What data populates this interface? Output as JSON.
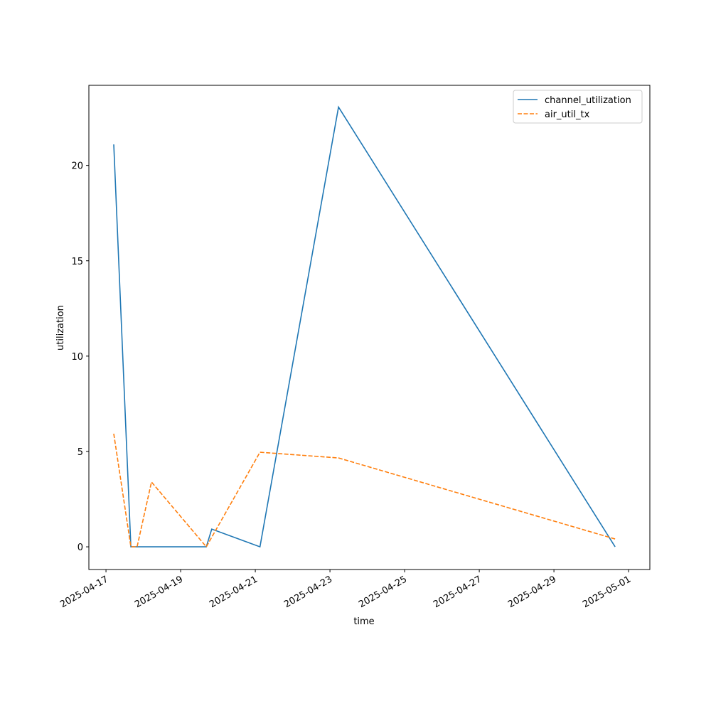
{
  "chart_data": {
    "type": "line",
    "xlabel": "time",
    "ylabel": "utilization",
    "xlim": [
      "2025-04-16T13:00",
      "2025-05-01T13:40"
    ],
    "xticks": [
      "2025-04-17",
      "2025-04-19",
      "2025-04-21",
      "2025-04-23",
      "2025-04-25",
      "2025-04-27",
      "2025-04-29",
      "2025-05-01"
    ],
    "ylim": [
      -1.19,
      24.2
    ],
    "yticks": [
      0,
      5,
      10,
      15,
      20
    ],
    "legend": "upper right",
    "series": [
      {
        "name": "channel_utilization",
        "color": "#1f77b4",
        "dash": "solid",
        "x": [
          "2025-04-17T05:00",
          "2025-04-17T16:00",
          "2025-04-19T16:30",
          "2025-04-19T20:00",
          "2025-04-21T03:00",
          "2025-04-23T05:30",
          "2025-04-30T15:20"
        ],
        "values": [
          21.1,
          0,
          0,
          0.93,
          0,
          23.06,
          0
        ]
      },
      {
        "name": "air_util_tx",
        "color": "#ff7f0e",
        "dash": "dashed",
        "x": [
          "2025-04-17T05:00",
          "2025-04-17T16:00",
          "2025-04-17T20:00",
          "2025-04-18T05:15",
          "2025-04-19T16:30",
          "2025-04-21T03:00",
          "2025-04-23T05:30",
          "2025-04-30T15:20"
        ],
        "values": [
          5.93,
          0,
          0,
          3.4,
          0,
          4.96,
          4.66,
          0.41
        ]
      }
    ]
  }
}
